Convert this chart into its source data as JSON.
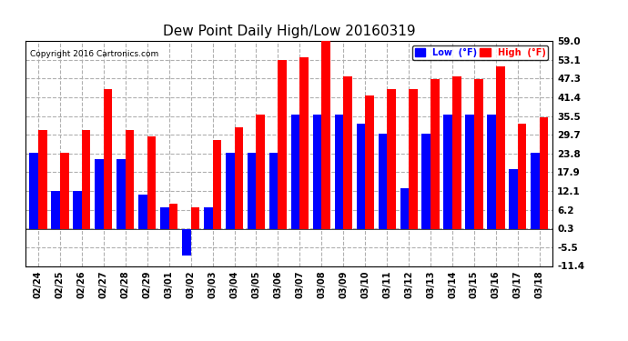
{
  "title": "Dew Point Daily High/Low 20160319",
  "copyright": "Copyright 2016 Cartronics.com",
  "dates": [
    "02/24",
    "02/25",
    "02/26",
    "02/27",
    "02/28",
    "02/29",
    "03/01",
    "03/02",
    "03/03",
    "03/04",
    "03/05",
    "03/06",
    "03/07",
    "03/08",
    "03/09",
    "03/10",
    "03/11",
    "03/12",
    "03/13",
    "03/14",
    "03/15",
    "03/16",
    "03/17",
    "03/18"
  ],
  "low_values": [
    24,
    12,
    12,
    22,
    22,
    11,
    7,
    -8,
    7,
    24,
    24,
    24,
    36,
    36,
    36,
    33,
    30,
    13,
    30,
    36,
    36,
    36,
    19,
    24
  ],
  "high_values": [
    31,
    24,
    31,
    44,
    31,
    29,
    8,
    7,
    28,
    32,
    36,
    53,
    54,
    59,
    48,
    42,
    44,
    44,
    47,
    48,
    47,
    51,
    33,
    35
  ],
  "ylim": [
    -11.4,
    59.0
  ],
  "yticks": [
    -11.4,
    -5.5,
    0.3,
    6.2,
    12.1,
    17.9,
    23.8,
    29.7,
    35.5,
    41.4,
    47.3,
    53.1,
    59.0
  ],
  "low_color": "#0000ff",
  "high_color": "#ff0000",
  "bg_color": "#ffffff",
  "grid_color": "#b0b0b0",
  "bar_width": 0.4,
  "legend_low_label": "Low  (°F)",
  "legend_high_label": "High  (°F)"
}
